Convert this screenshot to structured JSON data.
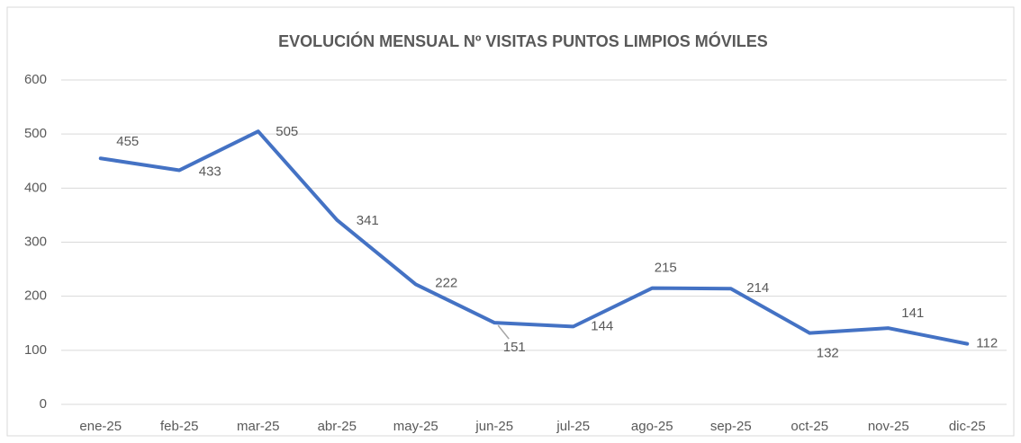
{
  "chart_data": {
    "type": "line",
    "title": "EVOLUCIÓN MENSUAL Nº VISITAS PUNTOS LIMPIOS MÓVILES",
    "categories": [
      "ene-25",
      "feb-25",
      "mar-25",
      "abr-25",
      "may-25",
      "jun-25",
      "jul-25",
      "ago-25",
      "sep-25",
      "oct-25",
      "nov-25",
      "dic-25"
    ],
    "values": [
      455,
      433,
      505,
      341,
      222,
      151,
      144,
      215,
      214,
      132,
      141,
      112
    ],
    "color": "#4472c4",
    "ylim": [
      0,
      600
    ],
    "yticks": [
      0,
      100,
      200,
      300,
      400,
      500,
      600
    ],
    "grid": true
  }
}
